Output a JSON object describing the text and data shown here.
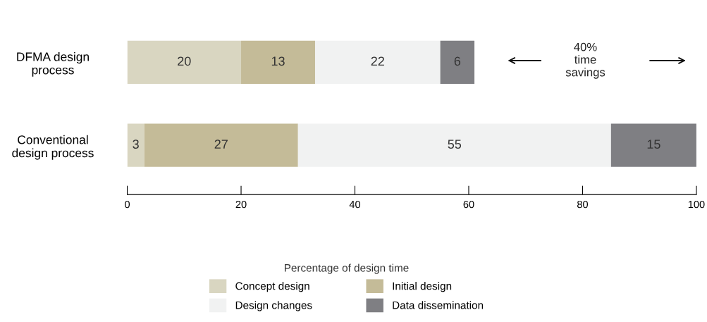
{
  "chart_data": {
    "type": "bar",
    "orientation": "horizontal",
    "stacked": true,
    "categories": [
      "DFMA design\nprocess",
      "Conventional\ndesign process"
    ],
    "series": [
      {
        "name": "Concept design",
        "color": "#d9d6c1",
        "values": [
          20,
          3
        ]
      },
      {
        "name": "Initial design",
        "color": "#c4bb98",
        "values": [
          13,
          27
        ]
      },
      {
        "name": "Design changes",
        "color": "#f1f2f2",
        "values": [
          22,
          55
        ]
      },
      {
        "name": "Data dissemination",
        "color": "#7f7f83",
        "values": [
          6,
          15
        ]
      }
    ],
    "xlim": [
      0,
      100
    ],
    "xticks": [
      0,
      20,
      40,
      60,
      80,
      100
    ],
    "data_labels": true,
    "grid": false,
    "legend": "bottom",
    "legend_title": "Percentage of design time",
    "annotations": [
      "40%\ntime\nsavings"
    ]
  }
}
